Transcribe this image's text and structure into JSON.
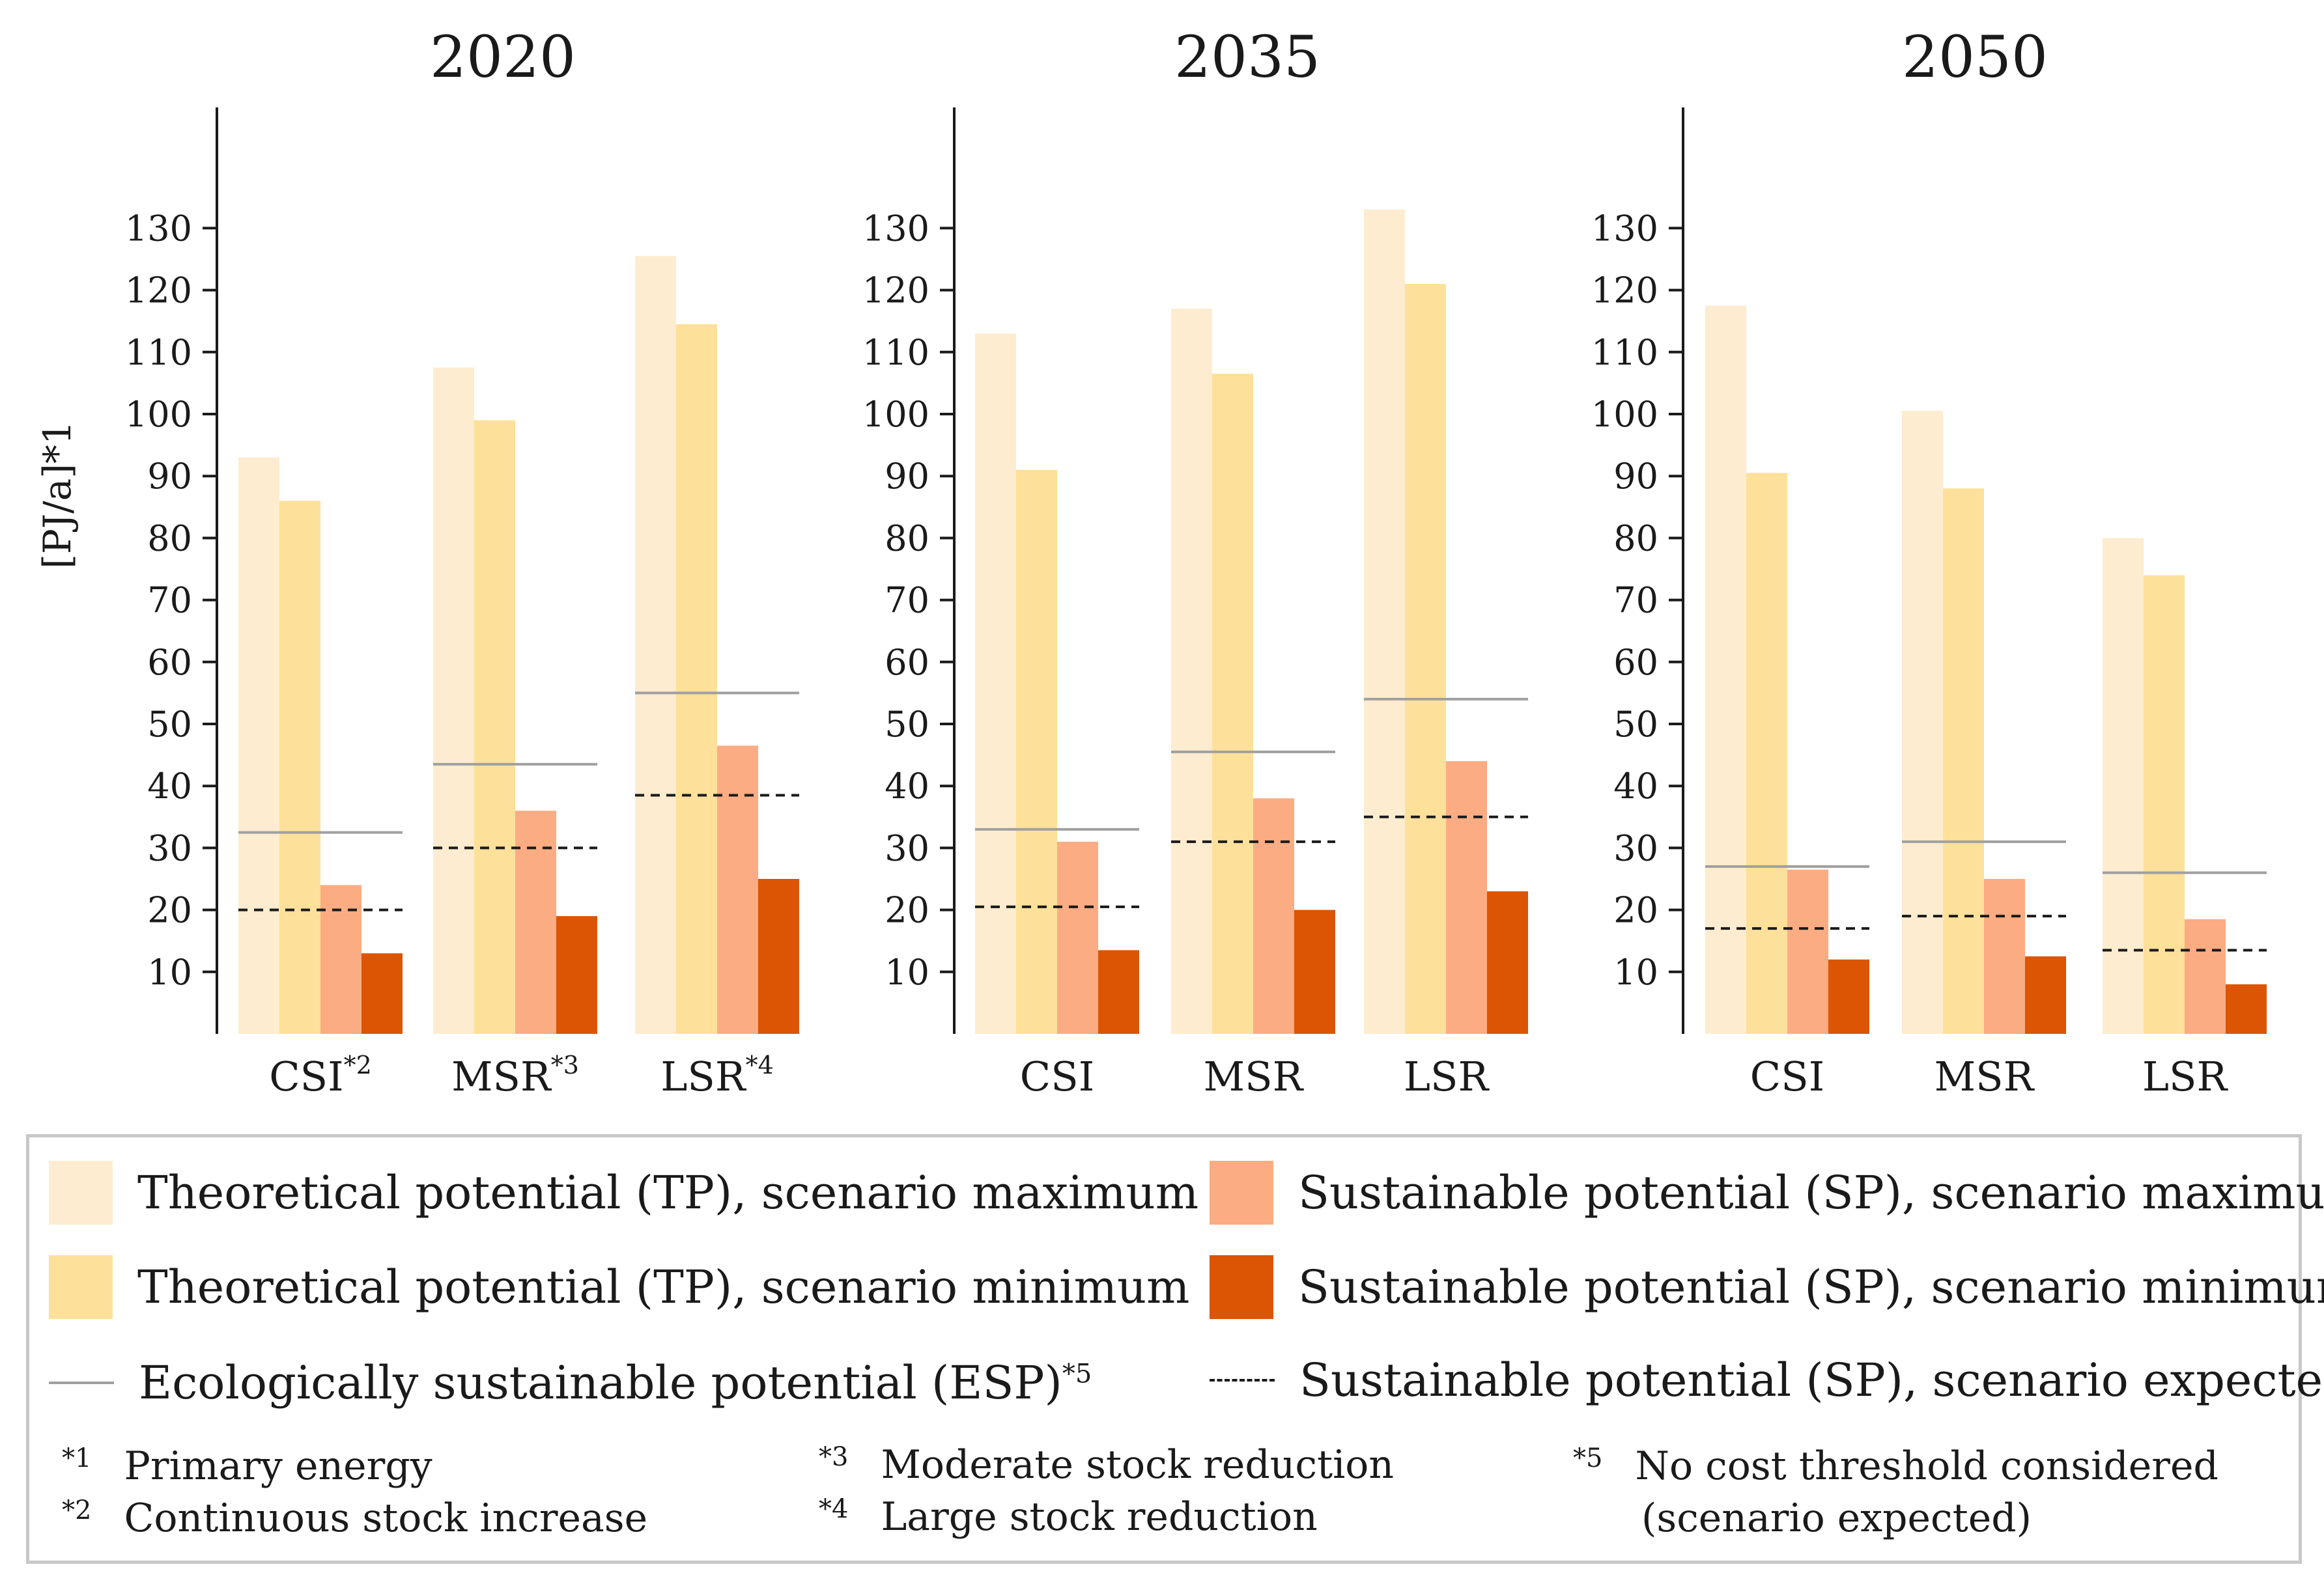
{
  "chart_data": [
    {
      "type": "bar",
      "title": "2020",
      "ylabel": "[PJ/a]*1",
      "ylim": [
        0,
        130
      ],
      "yticks": [
        10,
        20,
        30,
        40,
        50,
        60,
        70,
        80,
        90,
        100,
        110,
        120,
        130
      ],
      "categories": [
        {
          "label": "CSI",
          "sup": "*2"
        },
        {
          "label": "MSR",
          "sup": "*3"
        },
        {
          "label": "LSR",
          "sup": "*4"
        }
      ],
      "series": [
        {
          "name": "TP max",
          "values": [
            93,
            107.5,
            125.5
          ]
        },
        {
          "name": "TP min",
          "values": [
            86,
            99,
            114.5
          ]
        },
        {
          "name": "SP max",
          "values": [
            24,
            36,
            46.5
          ]
        },
        {
          "name": "SP min",
          "values": [
            13,
            19,
            25
          ]
        }
      ],
      "esp": [
        32.5,
        43.5,
        55
      ],
      "sp_expected": [
        20,
        30,
        38.5
      ]
    },
    {
      "type": "bar",
      "title": "2035",
      "ylabel": "",
      "ylim": [
        0,
        130
      ],
      "yticks": [
        10,
        20,
        30,
        40,
        50,
        60,
        70,
        80,
        90,
        100,
        110,
        120,
        130
      ],
      "categories": [
        {
          "label": "CSI",
          "sup": ""
        },
        {
          "label": "MSR",
          "sup": ""
        },
        {
          "label": "LSR",
          "sup": ""
        }
      ],
      "series": [
        {
          "name": "TP max",
          "values": [
            113,
            117,
            133
          ]
        },
        {
          "name": "TP min",
          "values": [
            91,
            106.5,
            121
          ]
        },
        {
          "name": "SP max",
          "values": [
            31,
            38,
            44
          ]
        },
        {
          "name": "SP min",
          "values": [
            13.5,
            20,
            23
          ]
        }
      ],
      "esp": [
        33,
        45.5,
        54
      ],
      "sp_expected": [
        20.5,
        31,
        35
      ]
    },
    {
      "type": "bar",
      "title": "2050",
      "ylabel": "",
      "ylim": [
        0,
        130
      ],
      "yticks": [
        10,
        20,
        30,
        40,
        50,
        60,
        70,
        80,
        90,
        100,
        110,
        120,
        130
      ],
      "categories": [
        {
          "label": "CSI",
          "sup": ""
        },
        {
          "label": "MSR",
          "sup": ""
        },
        {
          "label": "LSR",
          "sup": ""
        }
      ],
      "series": [
        {
          "name": "TP max",
          "values": [
            117.5,
            100.5,
            80
          ]
        },
        {
          "name": "TP min",
          "values": [
            90.5,
            88,
            74
          ]
        },
        {
          "name": "SP max",
          "values": [
            26.5,
            25,
            18.5
          ]
        },
        {
          "name": "SP min",
          "values": [
            12,
            12.5,
            8
          ]
        }
      ],
      "esp": [
        27,
        31,
        26
      ],
      "sp_expected": [
        17,
        19,
        13.5
      ]
    }
  ],
  "colors": {
    "tp_max": "#fdeccf",
    "tp_min": "#fde09a",
    "sp_max": "#fbac82",
    "sp_min": "#db5504",
    "esp_line": "#a0a0a0",
    "sp_expected_line": "#1a1a1a",
    "axis": "#1a1a1a"
  },
  "legend": {
    "tp_max": "Theoretical potential (TP), scenario maximum",
    "tp_min": "Theoretical potential (TP), scenario minimum",
    "esp": "Ecologically sustainable potential (ESP)",
    "esp_sup": "*5",
    "sp_max": "Sustainable potential (SP), scenario maximum",
    "sp_min": "Sustainable potential (SP), scenario minimum",
    "sp_expected": "Sustainable potential (SP), scenario expected"
  },
  "footnotes": [
    {
      "mark": "*1",
      "text": "Primary energy"
    },
    {
      "mark": "*2",
      "text": "Continuous stock increase"
    },
    {
      "mark": "*3",
      "text": "Moderate stock reduction"
    },
    {
      "mark": "*4",
      "text": "Large stock reduction"
    },
    {
      "mark": "*5",
      "text": "No cost threshold considered"
    },
    {
      "mark": "",
      "text": "(scenario expected)"
    }
  ]
}
